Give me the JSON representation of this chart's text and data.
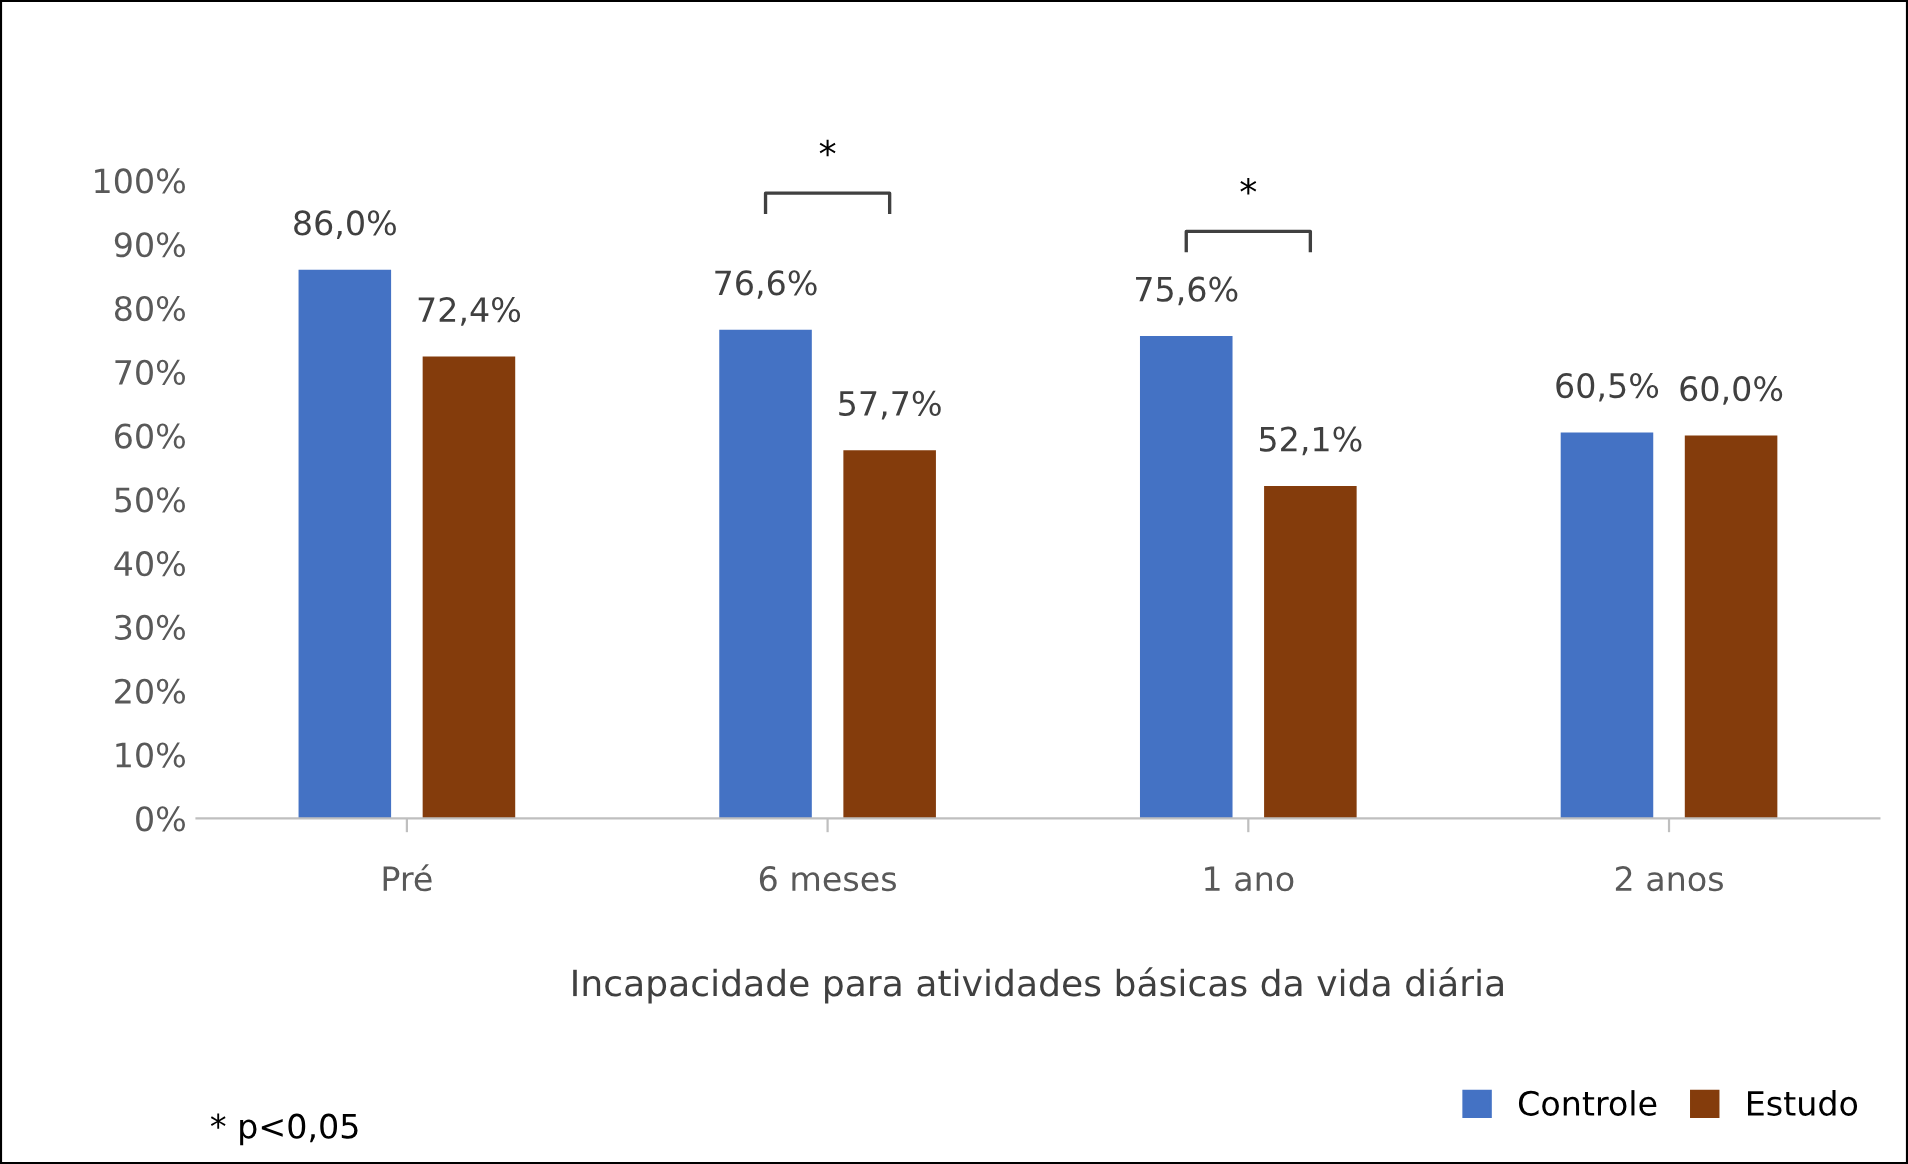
{
  "chart_data": {
    "type": "bar",
    "xlabel": "Incapacidade para atividades básicas da vida diária",
    "categories": [
      "Pré",
      "6 meses",
      "1 ano",
      "2 anos"
    ],
    "series": [
      {
        "name": "Controle",
        "color": "#4472c4",
        "values": [
          86.0,
          76.6,
          75.6,
          60.5
        ],
        "value_labels": [
          "86,0%",
          "76,6%",
          "75,6%",
          "60,5%"
        ]
      },
      {
        "name": "Estudo",
        "color": "#843c0c",
        "values": [
          72.4,
          57.7,
          52.1,
          60.0
        ],
        "value_labels": [
          "72,4%",
          "57,7%",
          "52,1%",
          "60,0%"
        ]
      }
    ],
    "ylim": [
      0,
      100
    ],
    "yticks": [
      {
        "value": 0,
        "label": "0%"
      },
      {
        "value": 10,
        "label": "10%"
      },
      {
        "value": 20,
        "label": "20%"
      },
      {
        "value": 30,
        "label": "30%"
      },
      {
        "value": 40,
        "label": "40%"
      },
      {
        "value": 50,
        "label": "50%"
      },
      {
        "value": 60,
        "label": "60%"
      },
      {
        "value": 70,
        "label": "70%"
      },
      {
        "value": 80,
        "label": "80%"
      },
      {
        "value": 90,
        "label": "90%"
      },
      {
        "value": 100,
        "label": "100%"
      }
    ],
    "grid": false,
    "legend": "bottom right",
    "annotations": [
      "*",
      "*",
      "* p<0,05"
    ]
  }
}
